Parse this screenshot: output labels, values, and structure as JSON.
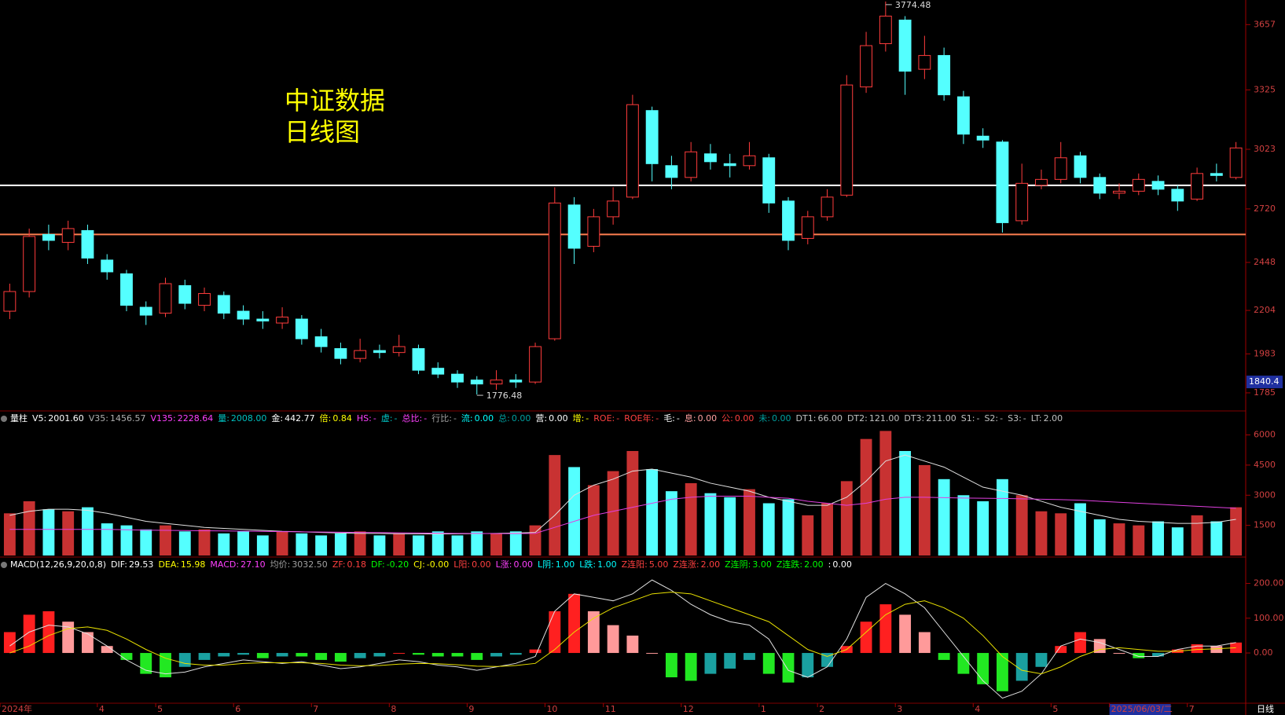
{
  "chart_data": [
    {
      "type": "candlestick",
      "title": [
        "中证数据",
        "日线图"
      ],
      "period": "日线",
      "categories": [
        "2024年",
        null,
        null,
        null,
        null,
        "4",
        null,
        null,
        "5",
        null,
        null,
        null,
        "6",
        null,
        null,
        null,
        "7",
        null,
        null,
        null,
        "8",
        null,
        null,
        null,
        "9",
        null,
        null,
        null,
        "10",
        null,
        null,
        "11",
        null,
        null,
        null,
        "12",
        null,
        null,
        null,
        "1",
        null,
        null,
        "2",
        null,
        null,
        null,
        "3",
        null,
        null,
        null,
        "4",
        null,
        null,
        null,
        "5",
        null,
        null,
        "2025/06/03/二",
        null,
        null,
        null,
        "7",
        null,
        null
      ],
      "cursor_index": 57,
      "cursor_value": 1840.4,
      "open": [
        2200,
        2300,
        2590,
        2550,
        2610,
        2460,
        2390,
        2220,
        2190,
        2330,
        2230,
        2280,
        2200,
        2160,
        2140,
        2160,
        2070,
        2010,
        1960,
        2000,
        1990,
        2010,
        1910,
        1880,
        1850,
        1830,
        1850,
        1840,
        2060,
        2740,
        2530,
        2680,
        2780,
        3220,
        2940,
        2880,
        3000,
        2950,
        2940,
        2980,
        2760,
        2570,
        2680,
        2790,
        3340,
        3560,
        3680,
        3430,
        3500,
        3290,
        3090,
        3060,
        2660,
        2840,
        2870,
        2990,
        2880,
        2800,
        2810,
        2860,
        2820,
        2770,
        2900,
        2880
      ],
      "high": [
        2340,
        2620,
        2640,
        2660,
        2640,
        2490,
        2410,
        2250,
        2370,
        2360,
        2320,
        2300,
        2230,
        2200,
        2220,
        2180,
        2110,
        2040,
        2060,
        2030,
        2080,
        2030,
        1940,
        1900,
        1870,
        1900,
        1880,
        2040,
        2830,
        2780,
        2720,
        2830,
        3300,
        3240,
        2990,
        3060,
        3050,
        3000,
        3060,
        3000,
        2780,
        2710,
        2820,
        3400,
        3620,
        3774.48,
        3700,
        3600,
        3540,
        3320,
        3130,
        3070,
        2950,
        2920,
        3060,
        3010,
        2900,
        2850,
        2900,
        2890,
        2840,
        2930,
        2950,
        3060
      ],
      "low": [
        2160,
        2270,
        2510,
        2510,
        2440,
        2360,
        2200,
        2130,
        2170,
        2210,
        2200,
        2160,
        2130,
        2110,
        2110,
        2030,
        1990,
        1930,
        1940,
        1960,
        1970,
        1880,
        1860,
        1810,
        1776.48,
        1800,
        1810,
        1830,
        2050,
        2440,
        2500,
        2640,
        2770,
        2860,
        2820,
        2860,
        2920,
        2880,
        2920,
        2700,
        2510,
        2540,
        2660,
        2780,
        3310,
        3520,
        3300,
        3380,
        3270,
        3050,
        3030,
        2600,
        2640,
        2820,
        2850,
        2850,
        2770,
        2770,
        2790,
        2790,
        2710,
        2760,
        2860,
        2870
      ],
      "close": [
        2300,
        2580,
        2560,
        2620,
        2470,
        2400,
        2230,
        2180,
        2340,
        2240,
        2290,
        2190,
        2160,
        2150,
        2170,
        2060,
        2020,
        1960,
        2000,
        1990,
        2020,
        1900,
        1880,
        1840,
        1830,
        1850,
        1840,
        2020,
        2750,
        2520,
        2680,
        2760,
        3250,
        2950,
        2880,
        3010,
        2960,
        2940,
        2990,
        2750,
        2560,
        2680,
        2780,
        3350,
        3550,
        3700,
        3420,
        3500,
        3300,
        3100,
        3070,
        2650,
        2850,
        2870,
        2980,
        2880,
        2800,
        2810,
        2870,
        2820,
        2760,
        2900,
        2890,
        3030
      ],
      "high_value_labels": [
        null,
        null,
        null,
        null,
        null,
        null,
        null,
        null,
        null,
        null,
        null,
        null,
        null,
        null,
        null,
        null,
        null,
        null,
        null,
        null,
        null,
        null,
        null,
        null,
        null,
        null,
        null,
        null,
        null,
        null,
        null,
        null,
        null,
        null,
        null,
        null,
        null,
        null,
        null,
        null,
        null,
        null,
        null,
        null,
        null,
        "3774.48",
        null,
        null,
        null,
        null,
        null,
        null,
        null,
        null,
        null,
        null,
        null,
        null,
        null,
        null,
        null,
        null,
        null,
        null
      ],
      "low_value_labels": [
        null,
        null,
        null,
        null,
        null,
        null,
        null,
        null,
        null,
        null,
        null,
        null,
        null,
        null,
        null,
        null,
        null,
        null,
        null,
        null,
        null,
        null,
        null,
        null,
        "1776.48",
        null,
        null,
        null,
        null,
        null,
        null,
        null,
        null,
        null,
        null,
        null,
        null,
        null,
        null,
        null,
        null,
        null,
        null,
        null,
        null,
        null,
        null,
        null,
        null,
        null,
        null,
        null,
        null,
        null,
        null,
        null,
        null,
        null,
        null,
        null,
        null,
        null,
        null,
        null
      ],
      "up_color": "#ff3c3c",
      "down_color": "#54ffff",
      "ylim": [
        1697,
        3782
      ],
      "yticks": [
        1785,
        1983,
        2204,
        2448,
        2720,
        3023,
        3325,
        3657
      ],
      "reference_lines": [
        {
          "value": 2840,
          "color": "#ffffff"
        },
        {
          "value": 2590,
          "color": "#ff7f50"
        }
      ]
    },
    {
      "type": "volume",
      "header": [
        {
          "label": "量柱",
          "color": "#ffffff"
        },
        {
          "label": "V5:",
          "value": "2001.60",
          "color": "#ffffff"
        },
        {
          "label": "V35:",
          "value": "1456.57",
          "color": "#b0b0b0"
        },
        {
          "label": "V135:",
          "value": "2228.64",
          "color": "#ff40ff"
        },
        {
          "label": "量:",
          "value": "2008.00",
          "color": "#00c0c0"
        },
        {
          "label": "金:",
          "value": "442.77",
          "color": "#ffffff"
        },
        {
          "label": "倍:",
          "value": "0.84",
          "color": "#ffff00"
        },
        {
          "label": "HS:",
          "value": "-",
          "color": "#ff40ff"
        },
        {
          "label": "虚:",
          "value": "-",
          "color": "#00c0c0"
        },
        {
          "label": "总比:",
          "value": "-",
          "color": "#ff40ff"
        },
        {
          "label": "行比:",
          "value": "-",
          "color": "#a0a0a0"
        },
        {
          "label": "流:",
          "value": "0.00",
          "color": "#00ffff"
        },
        {
          "label": "总:",
          "value": "0.00",
          "color": "#00a0a0"
        },
        {
          "label": "营:",
          "value": "0.00",
          "color": "#ffffff"
        },
        {
          "label": "增:",
          "value": "-",
          "color": "#ffff00"
        },
        {
          "label": "ROE:",
          "value": "-",
          "color": "#ff4040"
        },
        {
          "label": "ROE年:",
          "value": "-",
          "color": "#ff4040"
        },
        {
          "label": "毛:",
          "value": "-",
          "color": "#ffffff"
        },
        {
          "label": "息:",
          "value": "0.00",
          "color": "#ffa0a0"
        },
        {
          "label": "公:",
          "value": "0.00",
          "color": "#ff4040"
        },
        {
          "label": "未:",
          "value": "0.00",
          "color": "#00a0a0"
        },
        {
          "label": "DT1:",
          "value": "66.00",
          "color": "#c0c0c0"
        },
        {
          "label": "DT2:",
          "value": "121.00",
          "color": "#c0c0c0"
        },
        {
          "label": "DT3:",
          "value": "211.00",
          "color": "#c0c0c0"
        },
        {
          "label": "S1:",
          "value": "-",
          "color": "#c0c0c0"
        },
        {
          "label": "S2:",
          "value": "-",
          "color": "#c0c0c0"
        },
        {
          "label": "S3:",
          "value": "-",
          "color": "#c0c0c0"
        },
        {
          "label": "LT:",
          "value": "2.00",
          "color": "#c0c0c0"
        }
      ],
      "values": [
        2100,
        2700,
        2300,
        2200,
        2400,
        1600,
        1500,
        1300,
        1500,
        1200,
        1300,
        1100,
        1200,
        1000,
        1200,
        1100,
        1000,
        1100,
        1200,
        1000,
        1100,
        1000,
        1200,
        1000,
        1200,
        1100,
        1200,
        1500,
        5000,
        4400,
        3500,
        4200,
        5200,
        4300,
        3200,
        3600,
        3100,
        2900,
        3300,
        2600,
        2800,
        2000,
        2600,
        3700,
        5800,
        6200,
        5200,
        4500,
        3800,
        3000,
        2700,
        3800,
        3000,
        2200,
        2100,
        2600,
        1800,
        1600,
        1500,
        1700,
        1400,
        2000,
        1700,
        2400
      ],
      "up_color": "#c83232",
      "down_color": "#54ffff",
      "lines": [
        {
          "color": "#e0e0e0",
          "values": [
            2000,
            2200,
            2300,
            2300,
            2250,
            2100,
            1900,
            1700,
            1600,
            1500,
            1400,
            1350,
            1300,
            1250,
            1200,
            1180,
            1150,
            1120,
            1100,
            1100,
            1080,
            1080,
            1070,
            1080,
            1090,
            1100,
            1120,
            1150,
            2000,
            3000,
            3500,
            3800,
            4200,
            4300,
            4100,
            3900,
            3600,
            3400,
            3200,
            2900,
            2700,
            2500,
            2500,
            2900,
            3700,
            4700,
            5000,
            4700,
            4400,
            3900,
            3400,
            3200,
            3000,
            2700,
            2400,
            2200,
            2000,
            1800,
            1700,
            1650,
            1600,
            1600,
            1650,
            1800
          ]
        },
        {
          "color": "#e040e0",
          "values": [
            1300,
            1300,
            1300,
            1300,
            1300,
            1300,
            1280,
            1260,
            1250,
            1240,
            1230,
            1220,
            1210,
            1200,
            1190,
            1180,
            1170,
            1160,
            1150,
            1140,
            1130,
            1120,
            1110,
            1100,
            1100,
            1090,
            1090,
            1100,
            1400,
            1700,
            2000,
            2200,
            2400,
            2600,
            2800,
            2900,
            2950,
            2950,
            2950,
            2900,
            2850,
            2700,
            2600,
            2500,
            2600,
            2800,
            2900,
            2900,
            2880,
            2860,
            2850,
            2840,
            2820,
            2800,
            2780,
            2750,
            2700,
            2650,
            2600,
            2550,
            2500,
            2450,
            2400,
            2350
          ]
        }
      ],
      "ylim": [
        0,
        6530
      ],
      "yticks": [
        1500,
        3000,
        4500,
        6000
      ]
    },
    {
      "type": "macd",
      "header": [
        {
          "label": "MACD(12,26,9,20,0,8)",
          "color": "#ffffff"
        },
        {
          "label": "DIF:",
          "value": "29.53",
          "color": "#ffffff"
        },
        {
          "label": "DEA:",
          "value": "15.98",
          "color": "#ffff00"
        },
        {
          "label": "MACD:",
          "value": "27.10",
          "color": "#ff40ff"
        },
        {
          "label": "均价:",
          "value": "3032.50",
          "color": "#a0a0a0"
        },
        {
          "label": "ZF:",
          "value": "0.18",
          "color": "#ff4040"
        },
        {
          "label": "DF:",
          "value": "-0.20",
          "color": "#00ff00"
        },
        {
          "label": "CJ:",
          "value": "-0.00",
          "color": "#ffff00"
        },
        {
          "label": "L阳:",
          "value": "0.00",
          "color": "#ff4040"
        },
        {
          "label": "L涨:",
          "value": "0.00",
          "color": "#ff40ff"
        },
        {
          "label": "L阴:",
          "value": "1.00",
          "color": "#00ffff"
        },
        {
          "label": "L跌:",
          "value": "1.00",
          "color": "#00ffff"
        },
        {
          "label": "Z连阳:",
          "value": "5.00",
          "color": "#ff4040"
        },
        {
          "label": "Z连涨:",
          "value": "2.00",
          "color": "#ff4040"
        },
        {
          "label": "Z连阴:",
          "value": "3.00",
          "color": "#00ff00"
        },
        {
          "label": "Z连跌:",
          "value": "2.00",
          "color": "#00ff00"
        },
        {
          "label": ":",
          "value": "0.00",
          "color": "#ffffff"
        }
      ],
      "values": [
        60,
        110,
        120,
        90,
        60,
        20,
        -20,
        -60,
        -70,
        -40,
        -20,
        -10,
        -5,
        -15,
        -10,
        -10,
        -20,
        -25,
        -15,
        -10,
        0,
        -5,
        -10,
        -10,
        -20,
        -10,
        -5,
        10,
        120,
        170,
        120,
        80,
        50,
        0,
        -70,
        -80,
        -60,
        -45,
        -20,
        -60,
        -85,
        -70,
        -40,
        20,
        90,
        140,
        110,
        60,
        -20,
        -60,
        -90,
        -110,
        -80,
        -40,
        20,
        60,
        40,
        0,
        -15,
        -10,
        10,
        25,
        20,
        30
      ],
      "dif": {
        "color": "#e0e0e0",
        "values": [
          20,
          60,
          80,
          75,
          55,
          20,
          -20,
          -50,
          -60,
          -55,
          -40,
          -30,
          -20,
          -25,
          -30,
          -25,
          -35,
          -45,
          -40,
          -30,
          -20,
          -25,
          -35,
          -40,
          -50,
          -40,
          -30,
          -10,
          120,
          170,
          160,
          150,
          170,
          210,
          180,
          140,
          110,
          90,
          80,
          40,
          -50,
          -70,
          -40,
          40,
          160,
          200,
          170,
          130,
          60,
          -10,
          -80,
          -130,
          -110,
          -60,
          20,
          40,
          30,
          10,
          -10,
          -10,
          10,
          20,
          20,
          30
        ]
      },
      "dea": {
        "color": "#e8e000",
        "values": [
          0,
          20,
          50,
          70,
          75,
          65,
          40,
          10,
          -15,
          -30,
          -35,
          -35,
          -30,
          -28,
          -28,
          -28,
          -30,
          -35,
          -37,
          -36,
          -32,
          -30,
          -31,
          -34,
          -38,
          -39,
          -36,
          -30,
          10,
          60,
          100,
          130,
          150,
          170,
          175,
          170,
          150,
          130,
          110,
          90,
          50,
          10,
          -10,
          10,
          60,
          110,
          140,
          150,
          130,
          100,
          50,
          -10,
          -50,
          -60,
          -40,
          -10,
          10,
          15,
          10,
          5,
          5,
          10,
          12,
          15
        ]
      },
      "ylim": [
        -140,
        260
      ],
      "yticks": [
        {
          "value": 0,
          "label": "0.00"
        },
        {
          "value": 100,
          "label": "100.00"
        },
        {
          "value": 200,
          "label": "200.00"
        }
      ]
    }
  ]
}
